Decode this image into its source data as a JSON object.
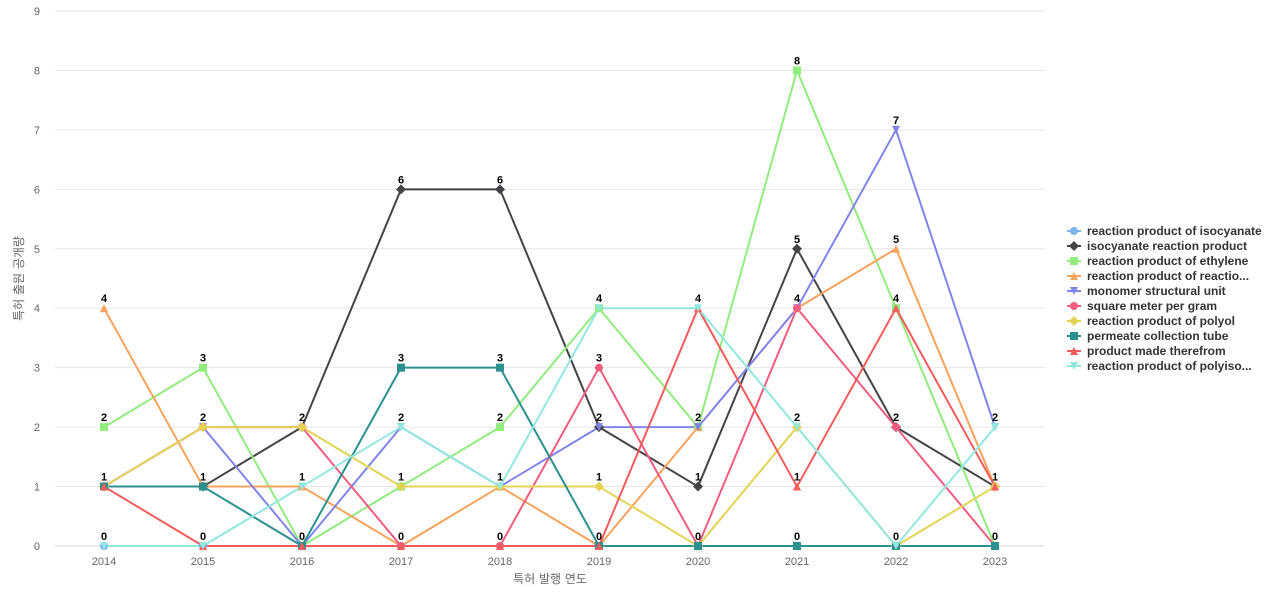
{
  "chart_data": {
    "type": "line",
    "title": "",
    "xlabel": "특허 발행 연도",
    "ylabel": "특허 출원 공개량",
    "categories": [
      "2014",
      "2015",
      "2016",
      "2017",
      "2018",
      "2019",
      "2020",
      "2021",
      "2022",
      "2023"
    ],
    "ylim": [
      0,
      9
    ],
    "yticks": [
      0,
      1,
      2,
      3,
      4,
      5,
      6,
      7,
      8,
      9
    ],
    "grid": "horizontal",
    "legend_position": "right",
    "series": [
      {
        "name": "reaction product of isocyanate",
        "color": "#7cb5ec",
        "marker": "circle",
        "values": [
          0,
          0,
          0,
          0,
          0,
          0,
          0,
          0,
          0,
          0
        ]
      },
      {
        "name": "isocyanate reaction product",
        "color": "#434348",
        "marker": "diamond",
        "values": [
          1,
          1,
          2,
          6,
          6,
          2,
          1,
          5,
          2,
          1
        ]
      },
      {
        "name": "reaction product of ethylene",
        "color": "#90ed7d",
        "marker": "square",
        "values": [
          2,
          3,
          0,
          1,
          2,
          4,
          2,
          8,
          4,
          0
        ]
      },
      {
        "name": "reaction product of reactio...",
        "color": "#f7a35c",
        "marker": "triangle",
        "values": [
          4,
          1,
          1,
          0,
          1,
          0,
          2,
          4,
          5,
          1
        ]
      },
      {
        "name": "monomer structural unit",
        "color": "#8085e9",
        "marker": "triangle-down",
        "values": [
          1,
          2,
          0,
          2,
          1,
          2,
          2,
          4,
          7,
          2
        ]
      },
      {
        "name": "square meter per gram",
        "color": "#f15c80",
        "marker": "circle",
        "values": [
          1,
          2,
          2,
          0,
          0,
          3,
          0,
          4,
          2,
          0
        ]
      },
      {
        "name": "reaction product of polyol",
        "color": "#e4d354",
        "marker": "diamond",
        "values": [
          1,
          2,
          2,
          1,
          1,
          1,
          0,
          2,
          0,
          1
        ]
      },
      {
        "name": "permeate collection tube",
        "color": "#2b908f",
        "marker": "square",
        "values": [
          1,
          1,
          0,
          3,
          3,
          0,
          0,
          0,
          0,
          0
        ]
      },
      {
        "name": "product made therefrom",
        "color": "#f45b5b",
        "marker": "triangle",
        "values": [
          1,
          0,
          0,
          0,
          0,
          0,
          4,
          1,
          4,
          1
        ]
      },
      {
        "name": "reaction product of polyiso...",
        "color": "#91e8e1",
        "marker": "triangle-down",
        "values": [
          0,
          0,
          1,
          2,
          1,
          4,
          4,
          2,
          0,
          2
        ]
      }
    ],
    "data_labels": [
      {
        "category": "2014",
        "values": [
          0,
          1,
          2,
          4
        ]
      },
      {
        "category": "2015",
        "values": [
          0,
          1,
          2,
          3
        ]
      },
      {
        "category": "2016",
        "values": [
          0,
          1,
          2
        ]
      },
      {
        "category": "2017",
        "values": [
          0,
          1,
          2,
          3,
          6
        ]
      },
      {
        "category": "2018",
        "values": [
          0,
          1,
          2,
          3,
          6
        ]
      },
      {
        "category": "2019",
        "values": [
          0,
          1,
          2,
          3,
          4
        ]
      },
      {
        "category": "2020",
        "values": [
          0,
          1,
          2,
          4
        ]
      },
      {
        "category": "2021",
        "values": [
          0,
          1,
          2,
          4,
          5,
          8
        ]
      },
      {
        "category": "2022",
        "values": [
          0,
          2,
          4,
          5,
          7
        ]
      },
      {
        "category": "2023",
        "values": [
          0,
          1,
          2
        ]
      }
    ]
  }
}
